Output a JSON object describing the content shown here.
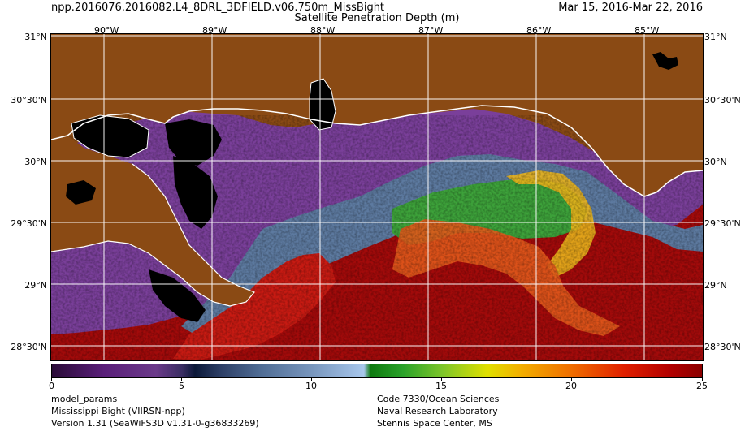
{
  "header": {
    "filename": "npp.2016076.2016082.L4_8DRL_3DFIELD.v06.750m_MissBight",
    "product": "Satellite Penetration Depth (m)",
    "date_range": "Mar 15, 2016-Mar 22, 2016"
  },
  "map": {
    "lon_labels": [
      "90°W",
      "89°W",
      "88°W",
      "87°W",
      "86°W",
      "85°W"
    ],
    "lat_labels": [
      "31°N",
      "30°30'N",
      "30°N",
      "29°30'N",
      "29°N",
      "28°30'N"
    ],
    "colors": {
      "land": "#8a4a14",
      "inland_water": "#000000",
      "coastline": "#ffffff",
      "grid": "#ffffff"
    }
  },
  "colorbar": {
    "ticks": [
      "0",
      "5",
      "10",
      "15",
      "20",
      "25"
    ],
    "min": 0,
    "max": 25
  },
  "footer": {
    "left": [
      "model_params",
      "Mississippi Bight (VIIRSN-npp)",
      "Version 1.31 (SeaWiFS3D v1.31-0-g36833269)"
    ],
    "right": [
      "Code 7330/Ocean Sciences",
      "Naval Research Laboratory",
      "Stennis Space Center, MS"
    ]
  }
}
